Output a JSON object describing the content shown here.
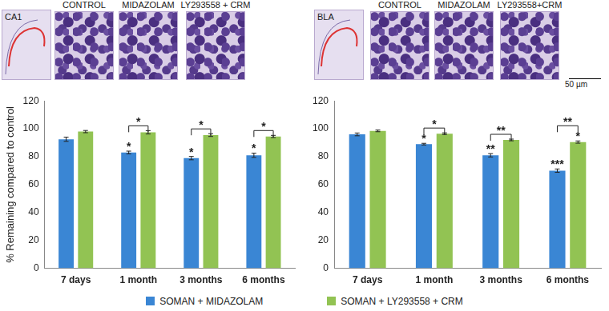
{
  "images": {
    "left": {
      "region": "CA1",
      "panels": [
        "CONTROL",
        "MIDAZOLAM",
        "LY293558 + CRM"
      ]
    },
    "right": {
      "region": "BLA",
      "panels": [
        "CONTROL",
        "MIDAZOLAM",
        "LY293558+CRM"
      ]
    },
    "scale_bar": "50 µm"
  },
  "chart_data": [
    {
      "type": "bar",
      "y_label": "% Remaining compared to control",
      "categories": [
        "7 days",
        "1 month",
        "3 months",
        "6 months"
      ],
      "series": [
        {
          "name": "SOMAN + MIDAZOLAM",
          "color": "#3a86d4",
          "values": [
            92.5,
            83,
            79,
            81
          ],
          "errors": [
            1.5,
            1,
            1.2,
            1.5
          ],
          "annotations": [
            null,
            "*",
            "*",
            "*"
          ]
        },
        {
          "name": "SOMAN + LY293558 + CRM",
          "color": "#92c353",
          "values": [
            98,
            97.5,
            95.5,
            94.5
          ],
          "errors": [
            0.8,
            1.2,
            1,
            0.8
          ],
          "annotations": [
            null,
            null,
            null,
            null
          ]
        }
      ],
      "brackets": [
        {
          "category": "1 month",
          "label": "*"
        },
        {
          "category": "3 months",
          "label": "*"
        },
        {
          "category": "6 months",
          "label": "*"
        }
      ],
      "ylim": [
        0,
        120
      ],
      "yticks": [
        0,
        20,
        40,
        60,
        80,
        100,
        120
      ],
      "grid": false,
      "legend": "bottom"
    },
    {
      "type": "bar",
      "categories": [
        "7 days",
        "1 month",
        "3 months",
        "6 months"
      ],
      "series": [
        {
          "name": "SOMAN + MIDAZOLAM",
          "color": "#3a86d4",
          "values": [
            96,
            89,
            81,
            70
          ],
          "errors": [
            1,
            0.6,
            1.2,
            1.2
          ],
          "annotations": [
            null,
            "*",
            "**",
            "***"
          ]
        },
        {
          "name": "SOMAN + LY293558 + CRM",
          "color": "#92c353",
          "values": [
            98.5,
            96.5,
            92,
            90.5
          ],
          "errors": [
            0.6,
            0.6,
            0.6,
            0.8
          ],
          "annotations": [
            null,
            null,
            null,
            "*"
          ]
        }
      ],
      "brackets": [
        {
          "category": "1 month",
          "label": "*"
        },
        {
          "category": "3 months",
          "label": "**"
        },
        {
          "category": "6 months",
          "label": "**"
        }
      ],
      "ylim": [
        0,
        120
      ],
      "yticks": [
        0,
        20,
        40,
        60,
        80,
        100,
        120
      ],
      "grid": false
    }
  ]
}
